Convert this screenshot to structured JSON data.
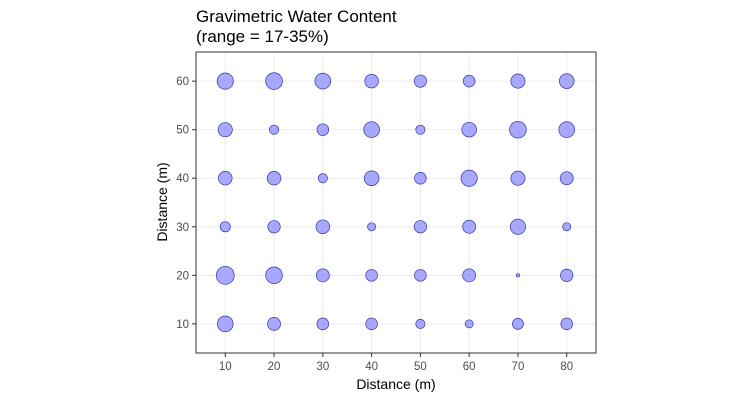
{
  "chart_data": {
    "type": "scatter",
    "title_lines": [
      "Gravimetric Water Content",
      "(range = 17-35%)"
    ],
    "xlabel": "Distance (m)",
    "ylabel": "Distance (m)",
    "xlim": [
      4,
      86
    ],
    "ylim": [
      4,
      66
    ],
    "x_ticks": [
      10,
      20,
      30,
      40,
      50,
      60,
      70,
      80
    ],
    "y_ticks": [
      10,
      20,
      30,
      40,
      50,
      60
    ],
    "grid": true,
    "legend": "none",
    "size_encoding": "gravimetric water content (%)",
    "size_range": [
      17,
      35
    ],
    "point_fill": "#9999ff",
    "point_stroke": "#3333aa",
    "points": [
      {
        "x": 10,
        "y": 60,
        "value": 31
      },
      {
        "x": 20,
        "y": 60,
        "value": 32
      },
      {
        "x": 30,
        "y": 60,
        "value": 30
      },
      {
        "x": 40,
        "y": 60,
        "value": 26
      },
      {
        "x": 50,
        "y": 60,
        "value": 24
      },
      {
        "x": 60,
        "y": 60,
        "value": 23
      },
      {
        "x": 70,
        "y": 60,
        "value": 27
      },
      {
        "x": 80,
        "y": 60,
        "value": 28
      },
      {
        "x": 10,
        "y": 50,
        "value": 27
      },
      {
        "x": 20,
        "y": 50,
        "value": 20
      },
      {
        "x": 30,
        "y": 50,
        "value": 23
      },
      {
        "x": 40,
        "y": 50,
        "value": 30
      },
      {
        "x": 50,
        "y": 50,
        "value": 20
      },
      {
        "x": 60,
        "y": 50,
        "value": 28
      },
      {
        "x": 70,
        "y": 50,
        "value": 32
      },
      {
        "x": 80,
        "y": 50,
        "value": 30
      },
      {
        "x": 10,
        "y": 40,
        "value": 26
      },
      {
        "x": 20,
        "y": 40,
        "value": 26
      },
      {
        "x": 30,
        "y": 40,
        "value": 20
      },
      {
        "x": 40,
        "y": 40,
        "value": 28
      },
      {
        "x": 50,
        "y": 40,
        "value": 23
      },
      {
        "x": 60,
        "y": 40,
        "value": 31
      },
      {
        "x": 70,
        "y": 40,
        "value": 27
      },
      {
        "x": 80,
        "y": 40,
        "value": 25
      },
      {
        "x": 10,
        "y": 30,
        "value": 21
      },
      {
        "x": 20,
        "y": 30,
        "value": 24
      },
      {
        "x": 30,
        "y": 30,
        "value": 26
      },
      {
        "x": 40,
        "y": 30,
        "value": 19
      },
      {
        "x": 50,
        "y": 30,
        "value": 24
      },
      {
        "x": 60,
        "y": 30,
        "value": 25
      },
      {
        "x": 70,
        "y": 30,
        "value": 29
      },
      {
        "x": 80,
        "y": 30,
        "value": 19
      },
      {
        "x": 10,
        "y": 20,
        "value": 35
      },
      {
        "x": 20,
        "y": 20,
        "value": 32
      },
      {
        "x": 30,
        "y": 20,
        "value": 25
      },
      {
        "x": 40,
        "y": 20,
        "value": 23
      },
      {
        "x": 50,
        "y": 20,
        "value": 23
      },
      {
        "x": 60,
        "y": 20,
        "value": 25
      },
      {
        "x": 70,
        "y": 20,
        "value": 17
      },
      {
        "x": 80,
        "y": 20,
        "value": 24
      },
      {
        "x": 10,
        "y": 10,
        "value": 30
      },
      {
        "x": 20,
        "y": 10,
        "value": 25
      },
      {
        "x": 30,
        "y": 10,
        "value": 23
      },
      {
        "x": 40,
        "y": 10,
        "value": 23
      },
      {
        "x": 50,
        "y": 10,
        "value": 20
      },
      {
        "x": 60,
        "y": 10,
        "value": 19
      },
      {
        "x": 70,
        "y": 10,
        "value": 22
      },
      {
        "x": 80,
        "y": 10,
        "value": 23
      }
    ]
  }
}
